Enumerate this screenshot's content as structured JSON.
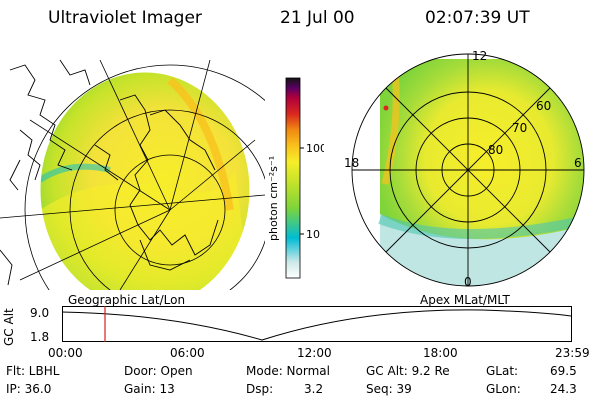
{
  "header": {
    "title": "Ultraviolet Imager",
    "date": "21 Jul 00",
    "time": "02:07:39 UT"
  },
  "colorbar": {
    "unit_label": "photon cm⁻²s⁻¹",
    "tick_100": "100",
    "tick_10": "10",
    "stops": [
      "#ffffff",
      "#cce9e8",
      "#00bcd4",
      "#7fd43a",
      "#c5e32a",
      "#f7ee2a",
      "#f9c21d",
      "#f08a12",
      "#d9281f",
      "#b0003c",
      "#5a0060",
      "#141414"
    ]
  },
  "polar_plot": {
    "mlt_top": "12",
    "mlt_left": "18",
    "mlt_right": "6",
    "mlt_bottom": "0",
    "lat_60": "60",
    "lat_70": "70",
    "lat_80": "80"
  },
  "timeline": {
    "left_label": "Geographic Lat/Lon",
    "right_label": "Apex MLat/MLT",
    "axis_label": "GC Alt",
    "y_top": "9.0",
    "y_bottom": "1.8",
    "ticks": [
      "00:00",
      "06:00",
      "12:00",
      "18:00",
      "23:59"
    ],
    "marker_color": "#d42020"
  },
  "status": {
    "flt": "Flt: LBHL",
    "ip": "IP: 36.0",
    "door": "Door: Open",
    "gain": "Gain: 13",
    "mode": "Mode: Normal",
    "dsp_label": "Dsp:",
    "dsp_value": "3.2",
    "gc_alt": "GC Alt: 9.2 Re",
    "seq": "Seq: 39",
    "glat_label": "GLat:",
    "glat_value": "69.5",
    "glon_label": "GLon:",
    "glon_value": "24.3"
  }
}
